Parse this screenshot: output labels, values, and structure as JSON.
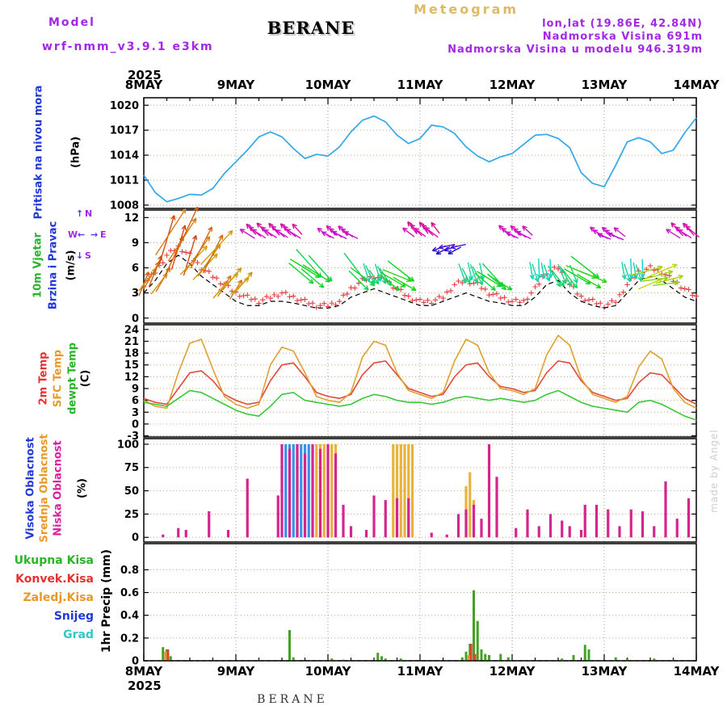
{
  "header": {
    "meteogram_title": "Meteogram",
    "model_label": "Model",
    "model_name": "wrf-nmm_v3.9.1 e3km",
    "station": "BERANE",
    "lonlat": "lon,lat (19.86E, 42.84N)",
    "elevation": "Nadmorska Visina 691m",
    "model_elevation": "Nadmorska Visina u modelu 946.319m"
  },
  "axis": {
    "year": "2025",
    "dates": [
      "8MAY",
      "9MAY",
      "10MAY",
      "11MAY",
      "12MAY",
      "13MAY",
      "14MAY"
    ],
    "bottom_caption": "BERANE"
  },
  "watermark": "made by Angel",
  "panels": {
    "pressure": {
      "label": "Pritisak na nivou mora",
      "unit": "(hPa)",
      "yticks": [
        1008,
        1011,
        1014,
        1017,
        1020
      ]
    },
    "wind": {
      "label1": "10m Vjetar",
      "label2": "Brzina i Pravac",
      "unit": "(m/s)",
      "yticks": [
        0,
        3,
        6,
        9,
        12
      ],
      "compass": {
        "n": "N",
        "e": "E",
        "s": "S",
        "w": "W"
      }
    },
    "temp": {
      "label1": "2m Temp",
      "label2": "SFC Temp",
      "label3": "dewpt Temp",
      "unit": "(C)",
      "yticks": [
        -3,
        0,
        3,
        6,
        9,
        12,
        15,
        18,
        21,
        24
      ]
    },
    "cloud": {
      "label1": "Visoka Oblacnost",
      "label2": "Srednja Oblacnost",
      "label3": "Niska Oblacnost",
      "unit": "(%)",
      "yticks": [
        0,
        25,
        50,
        75,
        100
      ]
    },
    "precip": {
      "unit": "1hr Precip (mm)",
      "yticks": [
        0,
        0.2,
        0.4,
        0.6,
        0.8
      ],
      "legend": [
        {
          "label": "Ukupna Kisa",
          "color": "#28b428"
        },
        {
          "label": "Konvek.Kisa",
          "color": "#e83030"
        },
        {
          "label": "Zaledj.Kisa",
          "color": "#e89828"
        },
        {
          "label": "Snijeg",
          "color": "#2038d8"
        },
        {
          "label": "Grad",
          "color": "#30c8c8"
        }
      ]
    }
  },
  "chart_data": [
    {
      "id": "pressure",
      "type": "line",
      "ylabel": "(hPa)",
      "ylim": [
        1008,
        1020
      ],
      "x_step_hours": 3,
      "series": [
        {
          "name": "Pritisak na nivou mora",
          "color": "#33a7e8",
          "values": [
            1011.6,
            1009.5,
            1008.4,
            1008.8,
            1009.3,
            1009.2,
            1010.0,
            1011.8,
            1013.2,
            1014.6,
            1016.2,
            1016.8,
            1016.2,
            1014.8,
            1013.6,
            1014.1,
            1013.9,
            1015.0,
            1016.8,
            1018.2,
            1018.7,
            1018.0,
            1016.4,
            1015.4,
            1016.0,
            1017.6,
            1017.4,
            1016.6,
            1015.0,
            1013.9,
            1013.2,
            1013.8,
            1014.2,
            1015.3,
            1016.4,
            1016.5,
            1016.0,
            1014.9,
            1011.9,
            1010.6,
            1010.2,
            1012.8,
            1015.6,
            1016.1,
            1015.6,
            1014.2,
            1014.6,
            1016.7,
            1018.5
          ]
        }
      ]
    },
    {
      "id": "wind",
      "type": "vector",
      "ylabel": "(m/s)",
      "ylim": [
        0,
        12
      ],
      "x_step_hours": 3,
      "gust_plus_3h": [
        4,
        5.5,
        7.5,
        8.5,
        7.5,
        6,
        5,
        4,
        3,
        2.5,
        2,
        2.5,
        3,
        2.5,
        2,
        1.5,
        1.5,
        2,
        3.5,
        4.5,
        5,
        4.5,
        3.5,
        2.5,
        2,
        2,
        2.5,
        4,
        4.5,
        4,
        3,
        2.5,
        2,
        2,
        3.5,
        5.5,
        6,
        4,
        2.5,
        2,
        1.5,
        2,
        4,
        5.5,
        6,
        5.5,
        4.5,
        3.5,
        2.5
      ],
      "mean_speed_3h": [
        3,
        4.5,
        6.5,
        7.5,
        6.5,
        5,
        4,
        3,
        2,
        1.5,
        1.5,
        2,
        2,
        1.8,
        1.5,
        1.2,
        1.2,
        1.5,
        2.5,
        3,
        3.5,
        3,
        2.5,
        2,
        1.5,
        1.5,
        2,
        2.5,
        3,
        2.5,
        2,
        1.8,
        1.5,
        1.5,
        2.5,
        4,
        4.5,
        3,
        2,
        1.5,
        1.2,
        1.5,
        3,
        4.5,
        5,
        4.5,
        3.5,
        2.5,
        2
      ],
      "arrow_segments": [
        [
          0,
          5,
          30,
          6
        ],
        [
          6,
          12,
          25,
          11
        ],
        [
          13,
          19,
          35,
          9
        ],
        [
          20,
          26,
          40,
          5
        ],
        [
          27,
          40,
          310,
          2.4
        ],
        [
          41,
          46,
          130,
          7
        ],
        [
          47,
          54,
          305,
          2.2
        ],
        [
          55,
          57,
          135,
          6.5
        ],
        [
          58,
          63,
          155,
          3.2
        ],
        [
          64,
          68,
          120,
          6
        ],
        [
          69,
          76,
          315,
          2.2
        ],
        [
          77,
          82,
          250,
          2.2
        ],
        [
          83,
          88,
          160,
          3.2
        ],
        [
          89,
          93,
          130,
          5.5
        ],
        [
          94,
          100,
          305,
          2.2
        ],
        [
          101,
          106,
          170,
          3
        ],
        [
          107,
          112,
          150,
          4
        ],
        [
          113,
          117,
          120,
          6.5
        ],
        [
          118,
          124,
          300,
          2.4
        ],
        [
          125,
          130,
          170,
          3
        ],
        [
          131,
          137,
          75,
          6
        ],
        [
          138,
          143,
          310,
          2.5
        ]
      ]
    },
    {
      "id": "temp",
      "type": "line",
      "ylabel": "(C)",
      "ylim": [
        -3,
        24
      ],
      "x_step_hours": 3,
      "series": [
        {
          "name": "2m Temp",
          "color": "#e0483a",
          "values": [
            6.5,
            5.5,
            5.0,
            9.0,
            13.0,
            13.5,
            11.0,
            7.5,
            6.0,
            5.0,
            5.5,
            11.0,
            15.0,
            15.5,
            12.0,
            8.0,
            7.0,
            6.5,
            7.5,
            12.5,
            15.5,
            16.0,
            12.5,
            9.0,
            8.0,
            7.0,
            7.5,
            12.0,
            15.0,
            15.5,
            12.0,
            9.5,
            9.0,
            8.0,
            8.5,
            13.0,
            16.0,
            15.5,
            11.0,
            8.0,
            7.0,
            6.0,
            6.5,
            10.5,
            13.0,
            12.5,
            9.5,
            6.5,
            5.0
          ]
        },
        {
          "name": "SFC Temp",
          "color": "#e0a030",
          "values": [
            6.0,
            4.5,
            4.0,
            13.0,
            20.5,
            21.5,
            14.0,
            7.0,
            5.0,
            4.0,
            5.0,
            15.0,
            19.5,
            18.5,
            13.0,
            7.0,
            6.0,
            5.5,
            8.0,
            17.0,
            21.0,
            20.0,
            13.0,
            8.5,
            7.5,
            6.5,
            8.0,
            16.0,
            21.5,
            20.0,
            13.0,
            9.0,
            8.5,
            7.5,
            9.0,
            17.5,
            22.5,
            20.0,
            11.5,
            7.5,
            6.5,
            5.5,
            7.0,
            14.5,
            18.5,
            16.5,
            9.0,
            5.5,
            4.0
          ]
        },
        {
          "name": "dewpt Temp",
          "color": "#38c838",
          "values": [
            5.5,
            5.0,
            4.5,
            6.5,
            8.5,
            8.0,
            6.5,
            5.0,
            3.5,
            2.5,
            2.0,
            4.5,
            7.5,
            8.0,
            6.0,
            5.5,
            5.0,
            4.5,
            5.0,
            6.5,
            7.5,
            7.0,
            6.0,
            5.5,
            5.5,
            5.0,
            5.5,
            6.5,
            7.0,
            6.5,
            6.0,
            6.5,
            6.0,
            5.5,
            6.0,
            7.5,
            8.5,
            7.0,
            5.5,
            4.5,
            4.0,
            3.5,
            3.0,
            5.5,
            6.0,
            5.0,
            3.5,
            2.0,
            1.0
          ]
        }
      ]
    },
    {
      "id": "cloud",
      "type": "bar",
      "ylabel": "(%)",
      "ylim": [
        0,
        100
      ],
      "series": [
        {
          "name": "Visoka Oblacnost",
          "color": "#3a8fe8",
          "points": [
            [
              37,
              100
            ],
            [
              38,
              100
            ],
            [
              39,
              100
            ],
            [
              40,
              100
            ],
            [
              41,
              100
            ],
            [
              42,
              100
            ],
            [
              43,
              100
            ]
          ]
        },
        {
          "name": "Srednja Oblacnost",
          "color": "#e8b23d",
          "points": [
            [
              44,
              100
            ],
            [
              45,
              100
            ],
            [
              46,
              100
            ],
            [
              47,
              100
            ],
            [
              48,
              100
            ],
            [
              49,
              100
            ],
            [
              50,
              100
            ],
            [
              65,
              100
            ],
            [
              66,
              100
            ],
            [
              67,
              100
            ],
            [
              68,
              100
            ],
            [
              69,
              100
            ],
            [
              70,
              100
            ],
            [
              84,
              55
            ],
            [
              85,
              70
            ],
            [
              86,
              40
            ]
          ]
        },
        {
          "name": "Niska Oblacnost",
          "color": "#d6248e",
          "points": [
            [
              5,
              3
            ],
            [
              9,
              10
            ],
            [
              11,
              8
            ],
            [
              17,
              28
            ],
            [
              22,
              8
            ],
            [
              27,
              63
            ],
            [
              35,
              45
            ],
            [
              36,
              100
            ],
            [
              38,
              95
            ],
            [
              40,
              100
            ],
            [
              42,
              90
            ],
            [
              44,
              100
            ],
            [
              46,
              95
            ],
            [
              48,
              100
            ],
            [
              50,
              90
            ],
            [
              52,
              35
            ],
            [
              54,
              12
            ],
            [
              58,
              8
            ],
            [
              60,
              45
            ],
            [
              63,
              40
            ],
            [
              66,
              42
            ],
            [
              69,
              42
            ],
            [
              75,
              5
            ],
            [
              79,
              3
            ],
            [
              82,
              25
            ],
            [
              84,
              30
            ],
            [
              86,
              35
            ],
            [
              88,
              20
            ],
            [
              90,
              100
            ],
            [
              92,
              65
            ],
            [
              97,
              10
            ],
            [
              100,
              30
            ],
            [
              103,
              12
            ],
            [
              106,
              25
            ],
            [
              109,
              18
            ],
            [
              111,
              12
            ],
            [
              114,
              8
            ],
            [
              115,
              35
            ],
            [
              118,
              35
            ],
            [
              121,
              30
            ],
            [
              124,
              12
            ],
            [
              127,
              30
            ],
            [
              130,
              28
            ],
            [
              133,
              12
            ],
            [
              136,
              60
            ],
            [
              139,
              20
            ],
            [
              142,
              42
            ]
          ]
        }
      ]
    },
    {
      "id": "precip",
      "type": "bar",
      "ylabel": "1hr Precip (mm)",
      "ylim": [
        0,
        1
      ],
      "series": [
        {
          "name": "Ukupna Kisa",
          "color": "#46a028",
          "points": [
            [
              5,
              0.12
            ],
            [
              6,
              0.1
            ],
            [
              7,
              0.04
            ],
            [
              38,
              0.27
            ],
            [
              39,
              0.03
            ],
            [
              49,
              0.02
            ],
            [
              52,
              0.01
            ],
            [
              61,
              0.07
            ],
            [
              62,
              0.04
            ],
            [
              63,
              0.02
            ],
            [
              67,
              0.02
            ],
            [
              83,
              0.03
            ],
            [
              84,
              0.08
            ],
            [
              85,
              0.15
            ],
            [
              86,
              0.62
            ],
            [
              87,
              0.35
            ],
            [
              88,
              0.1
            ],
            [
              89,
              0.06
            ],
            [
              90,
              0.05
            ],
            [
              93,
              0.06
            ],
            [
              95,
              0.03
            ],
            [
              109,
              0.02
            ],
            [
              112,
              0.05
            ],
            [
              115,
              0.14
            ],
            [
              116,
              0.1
            ],
            [
              123,
              0.03
            ],
            [
              126,
              0.02
            ],
            [
              133,
              0.02
            ],
            [
              138,
              0.01
            ]
          ]
        },
        {
          "name": "Konvek.Kisa",
          "color": "#e04030",
          "points": [
            [
              6,
              0.1
            ],
            [
              85,
              0.15
            ],
            [
              86,
              0.06
            ]
          ]
        },
        {
          "name": "Zaledj.Kisa",
          "color": "#e09828",
          "points": [
            [
              6,
              0.08
            ],
            [
              85,
              0.05
            ]
          ]
        },
        {
          "name": "Snijeg",
          "color": "#2038d8",
          "points": []
        },
        {
          "name": "Grad",
          "color": "#30c8c8",
          "points": []
        }
      ]
    }
  ]
}
